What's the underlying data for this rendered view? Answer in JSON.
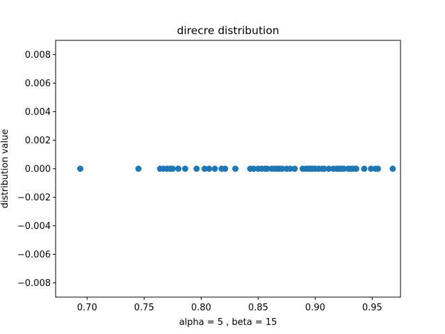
{
  "chart_data": {
    "type": "scatter",
    "title": "direcre distribution",
    "xlabel": "alpha = 5 , beta = 15",
    "ylabel": "distribution value",
    "xlim": [
      0.6724,
      0.9748
    ],
    "ylim": [
      -0.009,
      0.009
    ],
    "xticks": [
      0.7,
      0.75,
      0.8,
      0.85,
      0.9,
      0.95
    ],
    "xtick_labels": [
      "0.70",
      "0.75",
      "0.80",
      "0.85",
      "0.90",
      "0.95"
    ],
    "yticks": [
      0.008,
      0.006,
      0.004,
      0.002,
      0.0,
      -0.002,
      -0.004,
      -0.006,
      -0.008
    ],
    "ytick_labels": [
      "0.008",
      "0.006",
      "0.004",
      "0.002",
      "0.000",
      "−0.002",
      "−0.004",
      "−0.006",
      "−0.008"
    ],
    "grid": false,
    "marker_color": "#1f77b4",
    "series": [
      {
        "x": [
          0.694,
          0.745,
          0.764,
          0.767,
          0.77,
          0.773,
          0.775,
          0.78,
          0.786,
          0.796,
          0.803,
          0.807,
          0.812,
          0.818,
          0.821,
          0.83,
          0.843,
          0.846,
          0.85,
          0.853,
          0.856,
          0.858,
          0.862,
          0.865,
          0.867,
          0.869,
          0.871,
          0.875,
          0.878,
          0.882,
          0.889,
          0.892,
          0.894,
          0.896,
          0.898,
          0.9,
          0.903,
          0.906,
          0.908,
          0.912,
          0.916,
          0.919,
          0.921,
          0.923,
          0.925,
          0.929,
          0.931,
          0.933,
          0.936,
          0.943,
          0.949,
          0.953,
          0.955,
          0.968
        ],
        "y": [
          0,
          0,
          0,
          0,
          0,
          0,
          0,
          0,
          0,
          0,
          0,
          0,
          0,
          0,
          0,
          0,
          0,
          0,
          0,
          0,
          0,
          0,
          0,
          0,
          0,
          0,
          0,
          0,
          0,
          0,
          0,
          0,
          0,
          0,
          0,
          0,
          0,
          0,
          0,
          0,
          0,
          0,
          0,
          0,
          0,
          0,
          0,
          0,
          0,
          0,
          0,
          0,
          0,
          0
        ]
      }
    ]
  }
}
